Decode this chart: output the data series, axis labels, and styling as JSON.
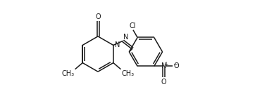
{
  "bg_color": "#ffffff",
  "line_color": "#1a1a1a",
  "line_width": 1.1,
  "font_size": 7.0,
  "xlim": [
    0.0,
    1.0
  ],
  "ylim": [
    0.0,
    1.0
  ]
}
